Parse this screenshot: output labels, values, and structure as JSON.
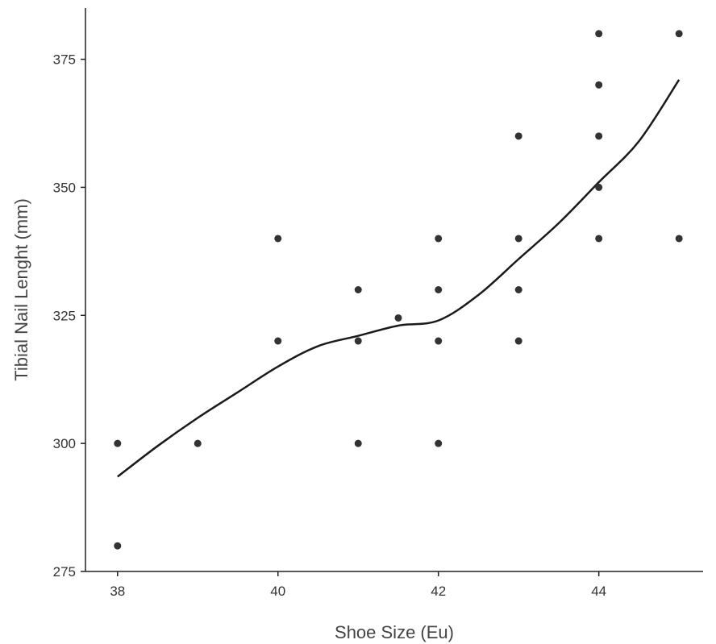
{
  "chart_data": {
    "type": "scatter",
    "title": "",
    "xlabel": "Shoe Size (Eu)",
    "ylabel": "Tibial Nail Lenght (mm)",
    "xlim": [
      37.6,
      45.3
    ],
    "ylim": [
      275,
      385
    ],
    "x_ticks": [
      38,
      40,
      42,
      44
    ],
    "y_ticks": [
      275,
      300,
      325,
      350,
      375
    ],
    "grid": false,
    "legend": "none",
    "point_color": "#333333",
    "line_color": "#1a1a1a",
    "points": [
      {
        "x": 38,
        "y": 300
      },
      {
        "x": 38,
        "y": 280
      },
      {
        "x": 39,
        "y": 300
      },
      {
        "x": 40,
        "y": 340
      },
      {
        "x": 40,
        "y": 320
      },
      {
        "x": 41,
        "y": 330
      },
      {
        "x": 41,
        "y": 320
      },
      {
        "x": 41,
        "y": 300
      },
      {
        "x": 41.5,
        "y": 324.5
      },
      {
        "x": 42,
        "y": 340
      },
      {
        "x": 42,
        "y": 330
      },
      {
        "x": 42,
        "y": 320
      },
      {
        "x": 42,
        "y": 300
      },
      {
        "x": 43,
        "y": 360
      },
      {
        "x": 43,
        "y": 340
      },
      {
        "x": 43,
        "y": 330
      },
      {
        "x": 43,
        "y": 320
      },
      {
        "x": 44,
        "y": 380
      },
      {
        "x": 44,
        "y": 370
      },
      {
        "x": 44,
        "y": 360
      },
      {
        "x": 44,
        "y": 350
      },
      {
        "x": 44,
        "y": 340
      },
      {
        "x": 45,
        "y": 380
      },
      {
        "x": 45,
        "y": 340
      }
    ],
    "smooth_line": {
      "x": [
        38,
        38.5,
        39,
        39.5,
        40,
        40.5,
        41,
        41.5,
        42,
        42.5,
        43,
        43.5,
        44,
        44.5,
        45
      ],
      "y": [
        293.5,
        299.5,
        305,
        310,
        315,
        319,
        321,
        323,
        324,
        329,
        336,
        343,
        351,
        359,
        371
      ]
    }
  }
}
